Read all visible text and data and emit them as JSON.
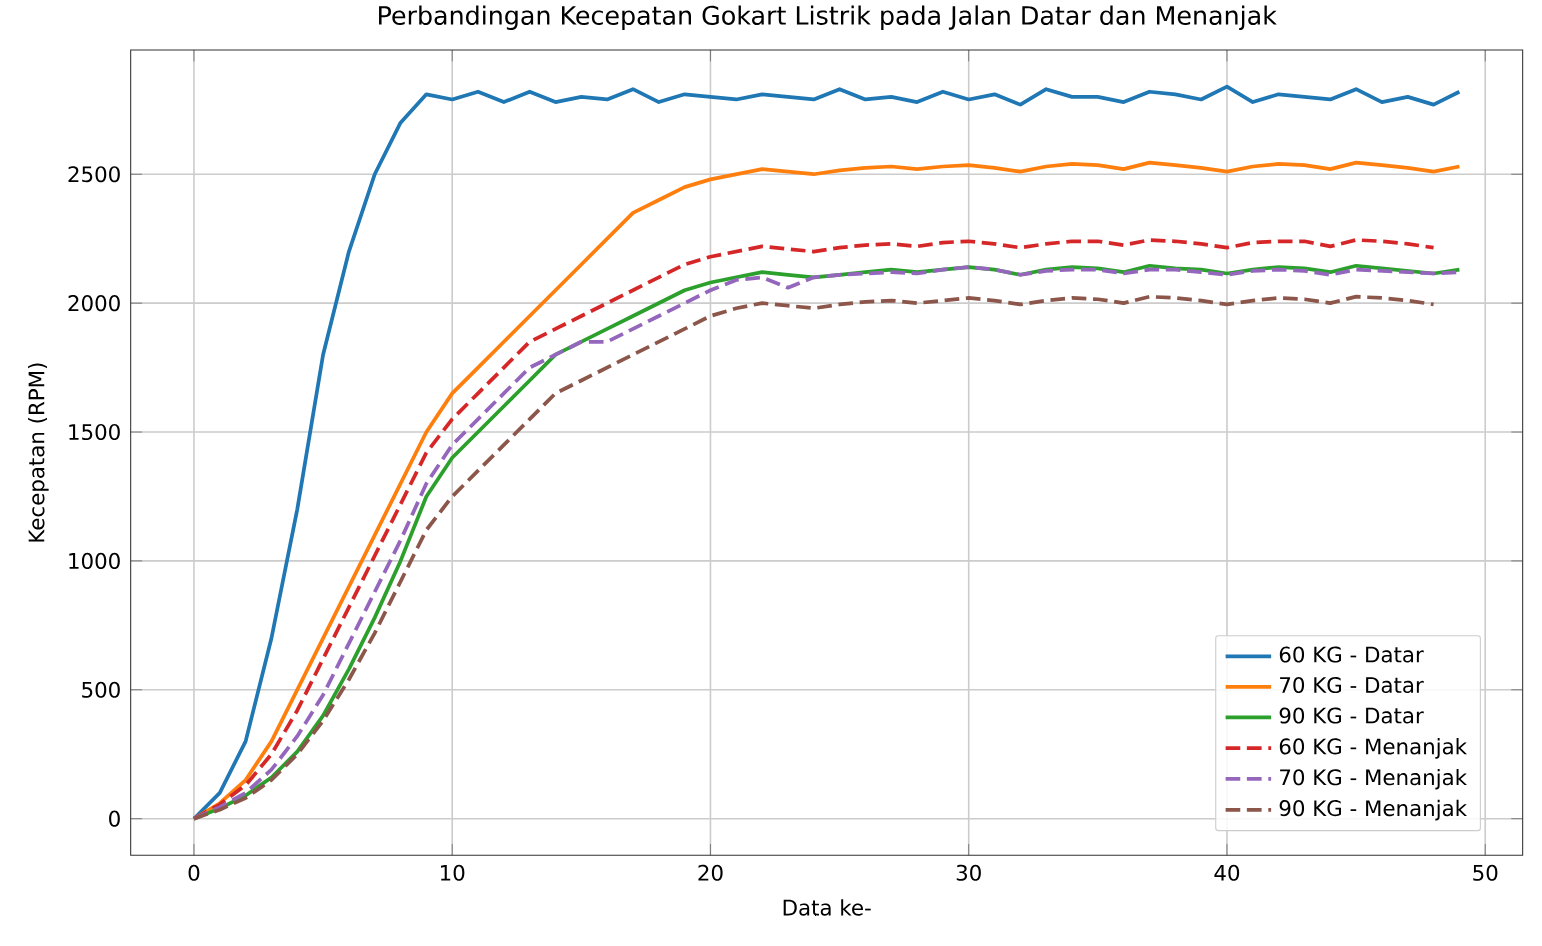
{
  "chart_data": {
    "type": "line",
    "title": "Perbandingan Kecepatan Gokart Listrik pada Jalan Datar dan Menanjak",
    "xlabel": "Data ke-",
    "ylabel": "Kecepatan (RPM)",
    "xlim": [
      -2.45,
      51.45
    ],
    "ylim": [
      -142,
      2982
    ],
    "xticks": [
      0,
      10,
      20,
      30,
      40,
      50
    ],
    "yticks": [
      0,
      500,
      1000,
      1500,
      2000,
      2500
    ],
    "grid": true,
    "legend": "bottom right",
    "x": [
      0,
      1,
      2,
      3,
      4,
      5,
      6,
      7,
      8,
      9,
      10,
      11,
      12,
      13,
      14,
      15,
      16,
      17,
      18,
      19,
      20,
      21,
      22,
      23,
      24,
      25,
      26,
      27,
      28,
      29,
      30,
      31,
      32,
      33,
      34,
      35,
      36,
      37,
      38,
      39,
      40,
      41,
      42,
      43,
      44,
      45,
      46,
      47,
      48,
      49
    ],
    "series": [
      {
        "name": "60 KG - Datar",
        "color": "#1f77b4",
        "line_style": "solid",
        "values": [
          0,
          100,
          300,
          700,
          1200,
          1800,
          2200,
          2500,
          2700,
          2810,
          2790,
          2820,
          2780,
          2820,
          2780,
          2800,
          2790,
          2830,
          2780,
          2810,
          2800,
          2790,
          2810,
          2800,
          2790,
          2830,
          2790,
          2800,
          2780,
          2820,
          2790,
          2810,
          2770,
          2830,
          2800,
          2800,
          2780,
          2820,
          2810,
          2790,
          2840,
          2780,
          2810,
          2800,
          2790,
          2830,
          2780,
          2800,
          2770,
          2820
        ]
      },
      {
        "name": "70 KG - Datar",
        "color": "#ff7f0e",
        "line_style": "solid",
        "values": [
          0,
          60,
          150,
          300,
          500,
          700,
          900,
          1100,
          1300,
          1500,
          1650,
          1750,
          1850,
          1950,
          2050,
          2150,
          2250,
          2350,
          2400,
          2450,
          2480,
          2500,
          2520,
          2510,
          2500,
          2515,
          2525,
          2530,
          2520,
          2530,
          2535,
          2525,
          2510,
          2530,
          2540,
          2535,
          2520,
          2545,
          2535,
          2525,
          2510,
          2530,
          2540,
          2535,
          2520,
          2545,
          2535,
          2525,
          2510,
          2530
        ]
      },
      {
        "name": "90 KG - Datar",
        "color": "#2ca02c",
        "line_style": "solid",
        "values": [
          0,
          40,
          90,
          160,
          260,
          400,
          580,
          780,
          1000,
          1250,
          1400,
          1500,
          1600,
          1700,
          1800,
          1850,
          1900,
          1950,
          2000,
          2050,
          2080,
          2100,
          2120,
          2110,
          2100,
          2110,
          2120,
          2130,
          2120,
          2130,
          2140,
          2130,
          2110,
          2130,
          2140,
          2135,
          2120,
          2145,
          2135,
          2130,
          2115,
          2130,
          2140,
          2135,
          2120,
          2145,
          2135,
          2125,
          2115,
          2130
        ]
      },
      {
        "name": "60 KG - Menanjak",
        "color": "#d62728",
        "line_style": "dashed",
        "x": [
          0,
          1,
          2,
          3,
          4,
          5,
          6,
          7,
          8,
          9,
          10,
          11,
          12,
          13,
          14,
          15,
          16,
          17,
          18,
          19,
          20,
          21,
          22,
          23,
          24,
          25,
          26,
          27,
          28,
          29,
          30,
          31,
          32,
          33,
          34,
          35,
          36,
          37,
          38,
          39,
          40,
          41,
          42,
          43,
          44,
          45,
          46,
          47,
          48
        ],
        "values": [
          0,
          55,
          130,
          250,
          420,
          620,
          820,
          1020,
          1220,
          1420,
          1550,
          1650,
          1750,
          1850,
          1900,
          1950,
          2000,
          2050,
          2100,
          2150,
          2180,
          2200,
          2220,
          2210,
          2200,
          2215,
          2225,
          2230,
          2220,
          2235,
          2240,
          2230,
          2215,
          2230,
          2240,
          2240,
          2225,
          2245,
          2240,
          2230,
          2215,
          2235,
          2240,
          2240,
          2220,
          2245,
          2240,
          2230,
          2215
        ]
      },
      {
        "name": "70 KG - Menanjak",
        "color": "#9467bd",
        "line_style": "dashed",
        "values": [
          0,
          45,
          100,
          190,
          320,
          480,
          680,
          880,
          1080,
          1300,
          1450,
          1550,
          1650,
          1750,
          1800,
          1850,
          1850,
          1900,
          1950,
          2000,
          2050,
          2090,
          2100,
          2060,
          2100,
          2110,
          2115,
          2120,
          2115,
          2130,
          2140,
          2130,
          2110,
          2125,
          2130,
          2130,
          2115,
          2130,
          2130,
          2120,
          2110,
          2125,
          2130,
          2125,
          2110,
          2130,
          2125,
          2120,
          2115,
          2120
        ]
      },
      {
        "name": "90 KG - Menanjak",
        "color": "#8c564b",
        "line_style": "dashed",
        "x": [
          0,
          1,
          2,
          3,
          4,
          5,
          6,
          7,
          8,
          9,
          10,
          11,
          12,
          13,
          14,
          15,
          16,
          17,
          18,
          19,
          20,
          21,
          22,
          23,
          24,
          25,
          26,
          27,
          28,
          29,
          30,
          31,
          32,
          33,
          34,
          35,
          36,
          37,
          38,
          39,
          40,
          41,
          42,
          43,
          44,
          45,
          46,
          47,
          48
        ],
        "values": [
          0,
          35,
          80,
          150,
          250,
          380,
          540,
          720,
          920,
          1120,
          1250,
          1350,
          1450,
          1550,
          1650,
          1700,
          1750,
          1800,
          1850,
          1900,
          1950,
          1980,
          2000,
          1990,
          1980,
          1995,
          2005,
          2010,
          2000,
          2010,
          2020,
          2010,
          1995,
          2010,
          2020,
          2015,
          2000,
          2025,
          2020,
          2010,
          1995,
          2010,
          2020,
          2015,
          2000,
          2025,
          2020,
          2010,
          1995
        ]
      }
    ]
  }
}
